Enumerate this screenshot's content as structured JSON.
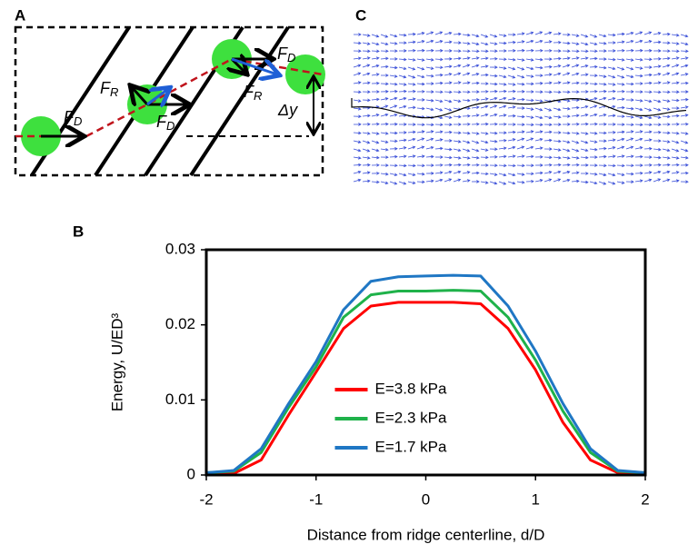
{
  "panels": {
    "a": {
      "label": "A",
      "forces": [
        {
          "main": "F",
          "sub": "D"
        },
        {
          "main": "F",
          "sub": "R"
        },
        {
          "main": "F",
          "sub": "D"
        },
        {
          "main": "F",
          "sub": "D"
        },
        {
          "main": "F",
          "sub": "R"
        }
      ],
      "offset": "Δy"
    },
    "c": {
      "label": "C"
    },
    "b": {
      "label": "B"
    }
  },
  "chart_data": {
    "type": "line",
    "x_label": "Distance from ridge centerline, d/D",
    "y_label": "Energy, U/ED³",
    "x": [
      -2,
      -1.75,
      -1.5,
      -1.25,
      -1,
      -0.75,
      -0.5,
      -0.25,
      0,
      0.25,
      0.5,
      0.75,
      1,
      1.25,
      1.5,
      1.75,
      2
    ],
    "series": [
      {
        "name": "E=3.8 kPa",
        "color": "#ff0000",
        "values": [
          0,
          0.0002,
          0.002,
          0.008,
          0.0137,
          0.0195,
          0.0225,
          0.023,
          0.023,
          0.023,
          0.0228,
          0.0195,
          0.014,
          0.007,
          0.002,
          0.0003,
          0
        ]
      },
      {
        "name": "E=2.3 kPa",
        "color": "#1fb24a",
        "values": [
          0.0003,
          0.0005,
          0.003,
          0.009,
          0.0144,
          0.021,
          0.024,
          0.0245,
          0.0245,
          0.0246,
          0.0245,
          0.021,
          0.0153,
          0.0085,
          0.003,
          0.0005,
          0.0003
        ]
      },
      {
        "name": "E=1.7 kPa",
        "color": "#1f77c4",
        "values": [
          0.0003,
          0.0006,
          0.0035,
          0.0095,
          0.0151,
          0.022,
          0.0258,
          0.0264,
          0.0265,
          0.0266,
          0.0265,
          0.0225,
          0.0165,
          0.0095,
          0.0035,
          0.0006,
          0.0003
        ]
      }
    ],
    "xlim": [
      -2,
      2
    ],
    "xticks": [
      -2,
      -1,
      0,
      1,
      2
    ],
    "ylim": [
      0,
      0.03
    ],
    "yticks": [
      0,
      0.01,
      0.02,
      0.03
    ],
    "legend": "center"
  }
}
